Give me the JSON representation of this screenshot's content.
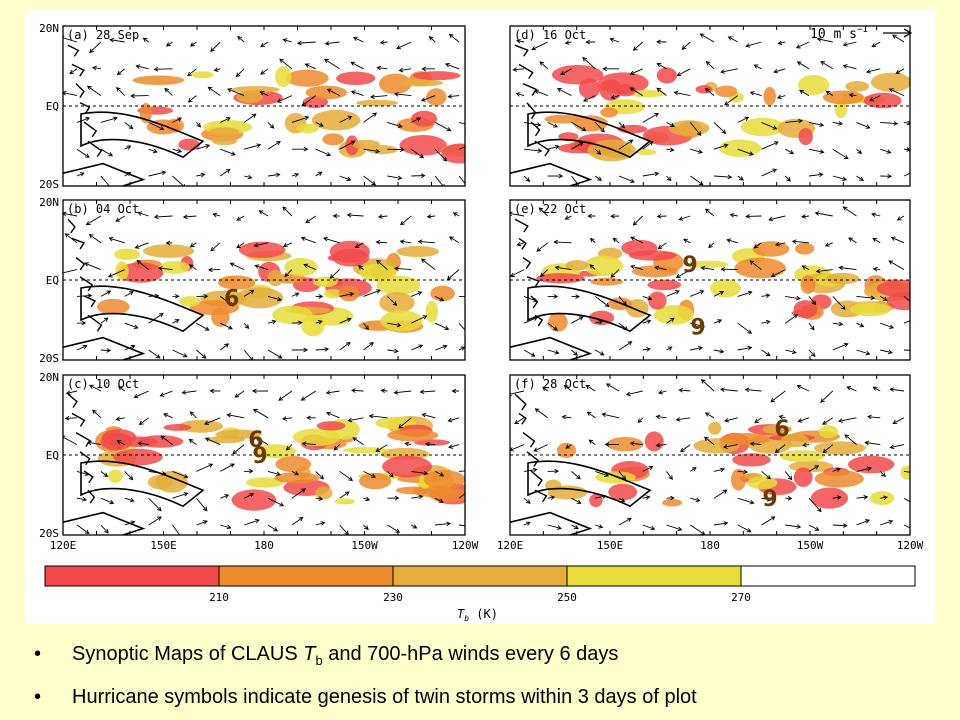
{
  "figure": {
    "panels": [
      {
        "id": "a",
        "label": "(a) 28 Sep",
        "genesis": []
      },
      {
        "id": "b",
        "label": "(b) 04 Oct",
        "genesis": [
          "6"
        ]
      },
      {
        "id": "c",
        "label": "(c) 10 Oct",
        "genesis": [
          "6",
          "9"
        ]
      },
      {
        "id": "d",
        "label": "(d) 16 Oct",
        "genesis": []
      },
      {
        "id": "e",
        "label": "(e) 22 Oct",
        "genesis": [
          "9",
          "9"
        ]
      },
      {
        "id": "f",
        "label": "(f) 28 Oct",
        "genesis": [
          "6",
          "9"
        ]
      }
    ],
    "lat_labels": [
      "20N",
      "EQ",
      "20S"
    ],
    "lon_labels": [
      "120E",
      "150E",
      "180",
      "150W",
      "120W"
    ],
    "wind_scale_label": "10 m s",
    "wind_scale_exponent": "−1",
    "colorbar": {
      "ticks": [
        "210",
        "230",
        "250",
        "270"
      ],
      "label": "T",
      "label_subscript": "b",
      "label_units": " (K)",
      "colors": [
        "#f24a4a",
        "#ef8a2e",
        "#e5ad3a",
        "#e8dc38",
        "#ffffff"
      ]
    }
  },
  "bullets": [
    {
      "prefix": "Synoptic Maps of CLAUS ",
      "var": "T",
      "sub": "b",
      "suffix": " and 700-hPa winds every 6 days"
    },
    {
      "prefix": "Hurricane symbols indicate genesis of twin storms within 3 days of plot",
      "var": "",
      "sub": "",
      "suffix": ""
    }
  ]
}
